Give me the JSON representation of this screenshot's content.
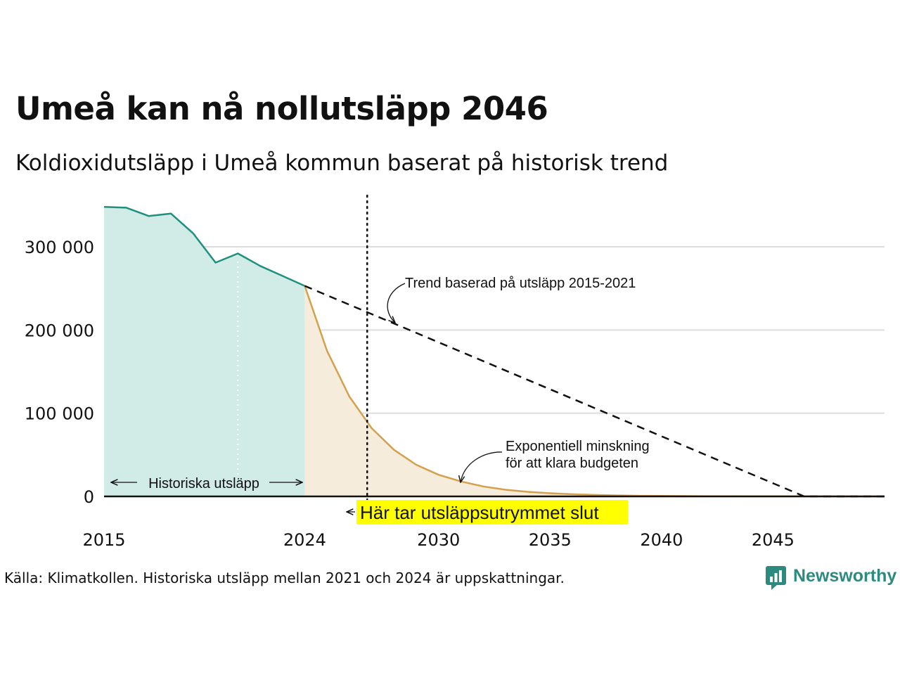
{
  "title": "Umeå kan nå nollutsläpp 2046",
  "subtitle": "Koldioxidutsläpp i Umeå kommun baserat på historisk trend",
  "source": "Källa: Klimatkollen. Historiska utsläpp mellan 2021 och 2024 är uppskattningar.",
  "brand": "Newsworthy",
  "colors": {
    "historic_line": "#1f9080",
    "historic_fill": "#d1ebe6",
    "budget_line": "#d4a04c",
    "budget_fill": "#f6ecdc",
    "trend_line": "#111111",
    "highlight": "#ffff00",
    "grid": "#dddddd",
    "logo": "#2d8a7e"
  },
  "chart_data": {
    "type": "area",
    "xlim": [
      2015,
      2050
    ],
    "ylim": [
      0,
      350000
    ],
    "x_ticks": [
      {
        "value": 2015,
        "label": "2015"
      },
      {
        "value": 2024,
        "label": "2024"
      },
      {
        "value": 2030,
        "label": "2030"
      },
      {
        "value": 2035,
        "label": "2035"
      },
      {
        "value": 2040,
        "label": "2040"
      },
      {
        "value": 2045,
        "label": "2045"
      }
    ],
    "y_ticks": [
      {
        "value": 0,
        "label": "0"
      },
      {
        "value": 100000,
        "label": "100 000"
      },
      {
        "value": 200000,
        "label": "200 000"
      },
      {
        "value": 300000,
        "label": "300 000"
      }
    ],
    "series": [
      {
        "name": "Historiska utsläpp",
        "style": "area",
        "x": [
          2015,
          2016,
          2017,
          2018,
          2019,
          2020,
          2021,
          2022,
          2023,
          2024
        ],
        "y": [
          348000,
          347000,
          337000,
          340000,
          316000,
          281000,
          292000,
          277000,
          265000,
          253000
        ]
      },
      {
        "name": "Exponentiell minskning",
        "style": "area",
        "x": [
          2024,
          2025,
          2026,
          2027,
          2028,
          2029,
          2030,
          2031,
          2032,
          2033,
          2034,
          2035,
          2036,
          2037,
          2038,
          2039,
          2040,
          2042,
          2044,
          2046,
          2048,
          2050
        ],
        "y": [
          253000,
          175000,
          120000,
          82000,
          56000,
          38000,
          26000,
          18000,
          12000,
          8000,
          5500,
          3800,
          2600,
          1800,
          1200,
          800,
          550,
          250,
          120,
          60,
          30,
          15
        ]
      },
      {
        "name": "Trend baserad på utsläpp 2015-2021",
        "style": "dashed",
        "x": [
          2024,
          2046.4,
          2050
        ],
        "y": [
          253000,
          0,
          0
        ]
      }
    ],
    "markers": [
      {
        "name": "historic-divider",
        "style": "dotted-white",
        "x": 2021
      },
      {
        "name": "budget-end",
        "style": "dotted",
        "x": 2026.8
      }
    ],
    "annotations": {
      "historic_label": "Historiska utsläpp",
      "trend_label": "Trend baserad på utsläpp 2015-2021",
      "exp_label_line1": "Exponentiell minskning",
      "exp_label_line2": "för att klara budgeten",
      "budget_end_label": "Här tar utsläppsutrymmet slut"
    }
  }
}
